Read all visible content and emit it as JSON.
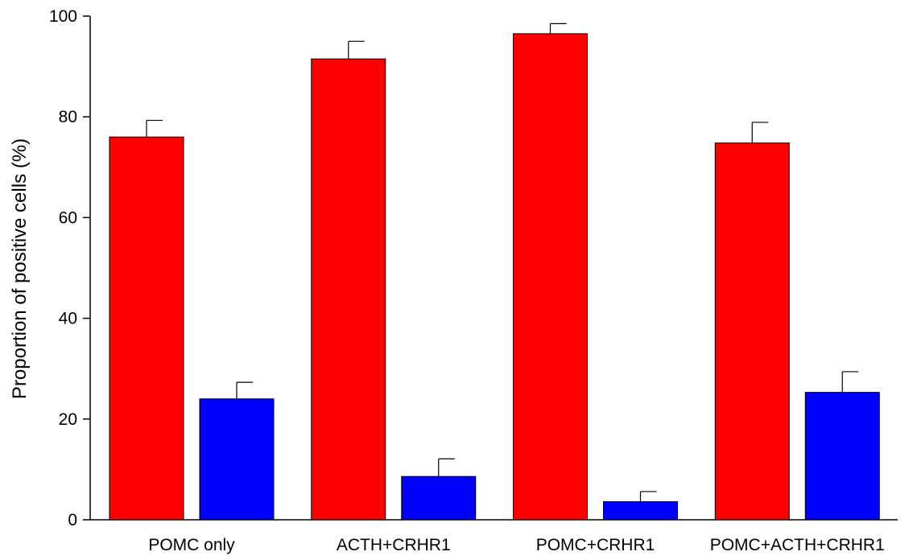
{
  "chart_data": {
    "type": "bar",
    "title": "",
    "xlabel": "",
    "ylabel": "Proportion of positive cells (%)",
    "ylim": [
      0,
      100
    ],
    "yticks": [
      0,
      20,
      40,
      60,
      80,
      100
    ],
    "grid": false,
    "legend": "none",
    "categories": [
      "POMC only",
      "ACTH+CRHR1",
      "POMC+CRHR1",
      "POMC+ACTH+CRHR1"
    ],
    "series": [
      {
        "color": "#ff0000",
        "values": [
          76,
          91.5,
          96.5,
          74.8
        ],
        "errors": [
          3.3,
          3.5,
          2.0,
          4.1
        ]
      },
      {
        "color": "#0000ff",
        "values": [
          24,
          8.6,
          3.6,
          25.3
        ],
        "errors": [
          3.3,
          3.5,
          2.0,
          4.1
        ]
      }
    ]
  }
}
